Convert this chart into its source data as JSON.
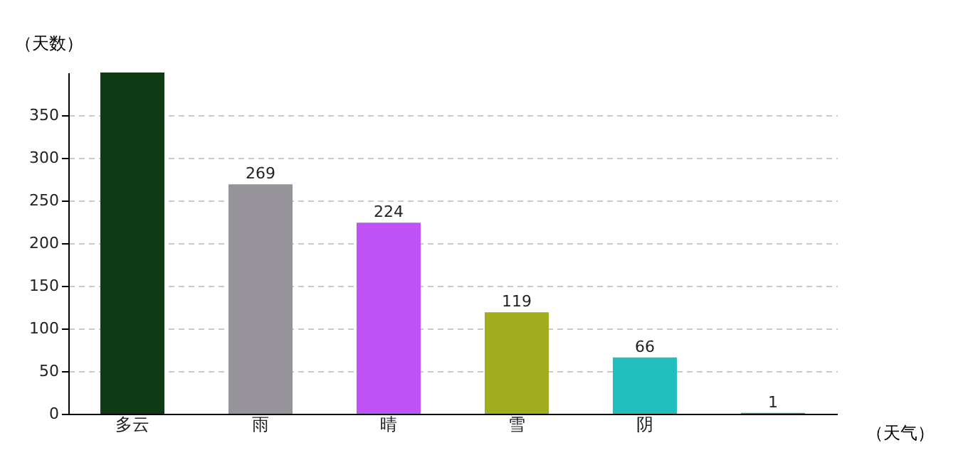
{
  "chart_data": {
    "type": "bar",
    "xlabel": "（天气）",
    "ylabel": "（天数）",
    "categories": [
      "多云",
      "雨",
      "晴",
      "雪",
      "阴",
      null
    ],
    "values": [
      400,
      269,
      224,
      119,
      66,
      1
    ],
    "value_labels": [
      null,
      "269",
      "224",
      "119",
      "66",
      "1"
    ],
    "colors": [
      "#103a14",
      "#96939b",
      "#bf53f8",
      "#a2ad1e",
      "#22bdbd",
      "#1f9fb0"
    ],
    "ylim": [
      0,
      400
    ],
    "yticks": [
      0,
      50,
      100,
      150,
      200,
      250,
      300,
      350
    ],
    "grid": "y"
  }
}
